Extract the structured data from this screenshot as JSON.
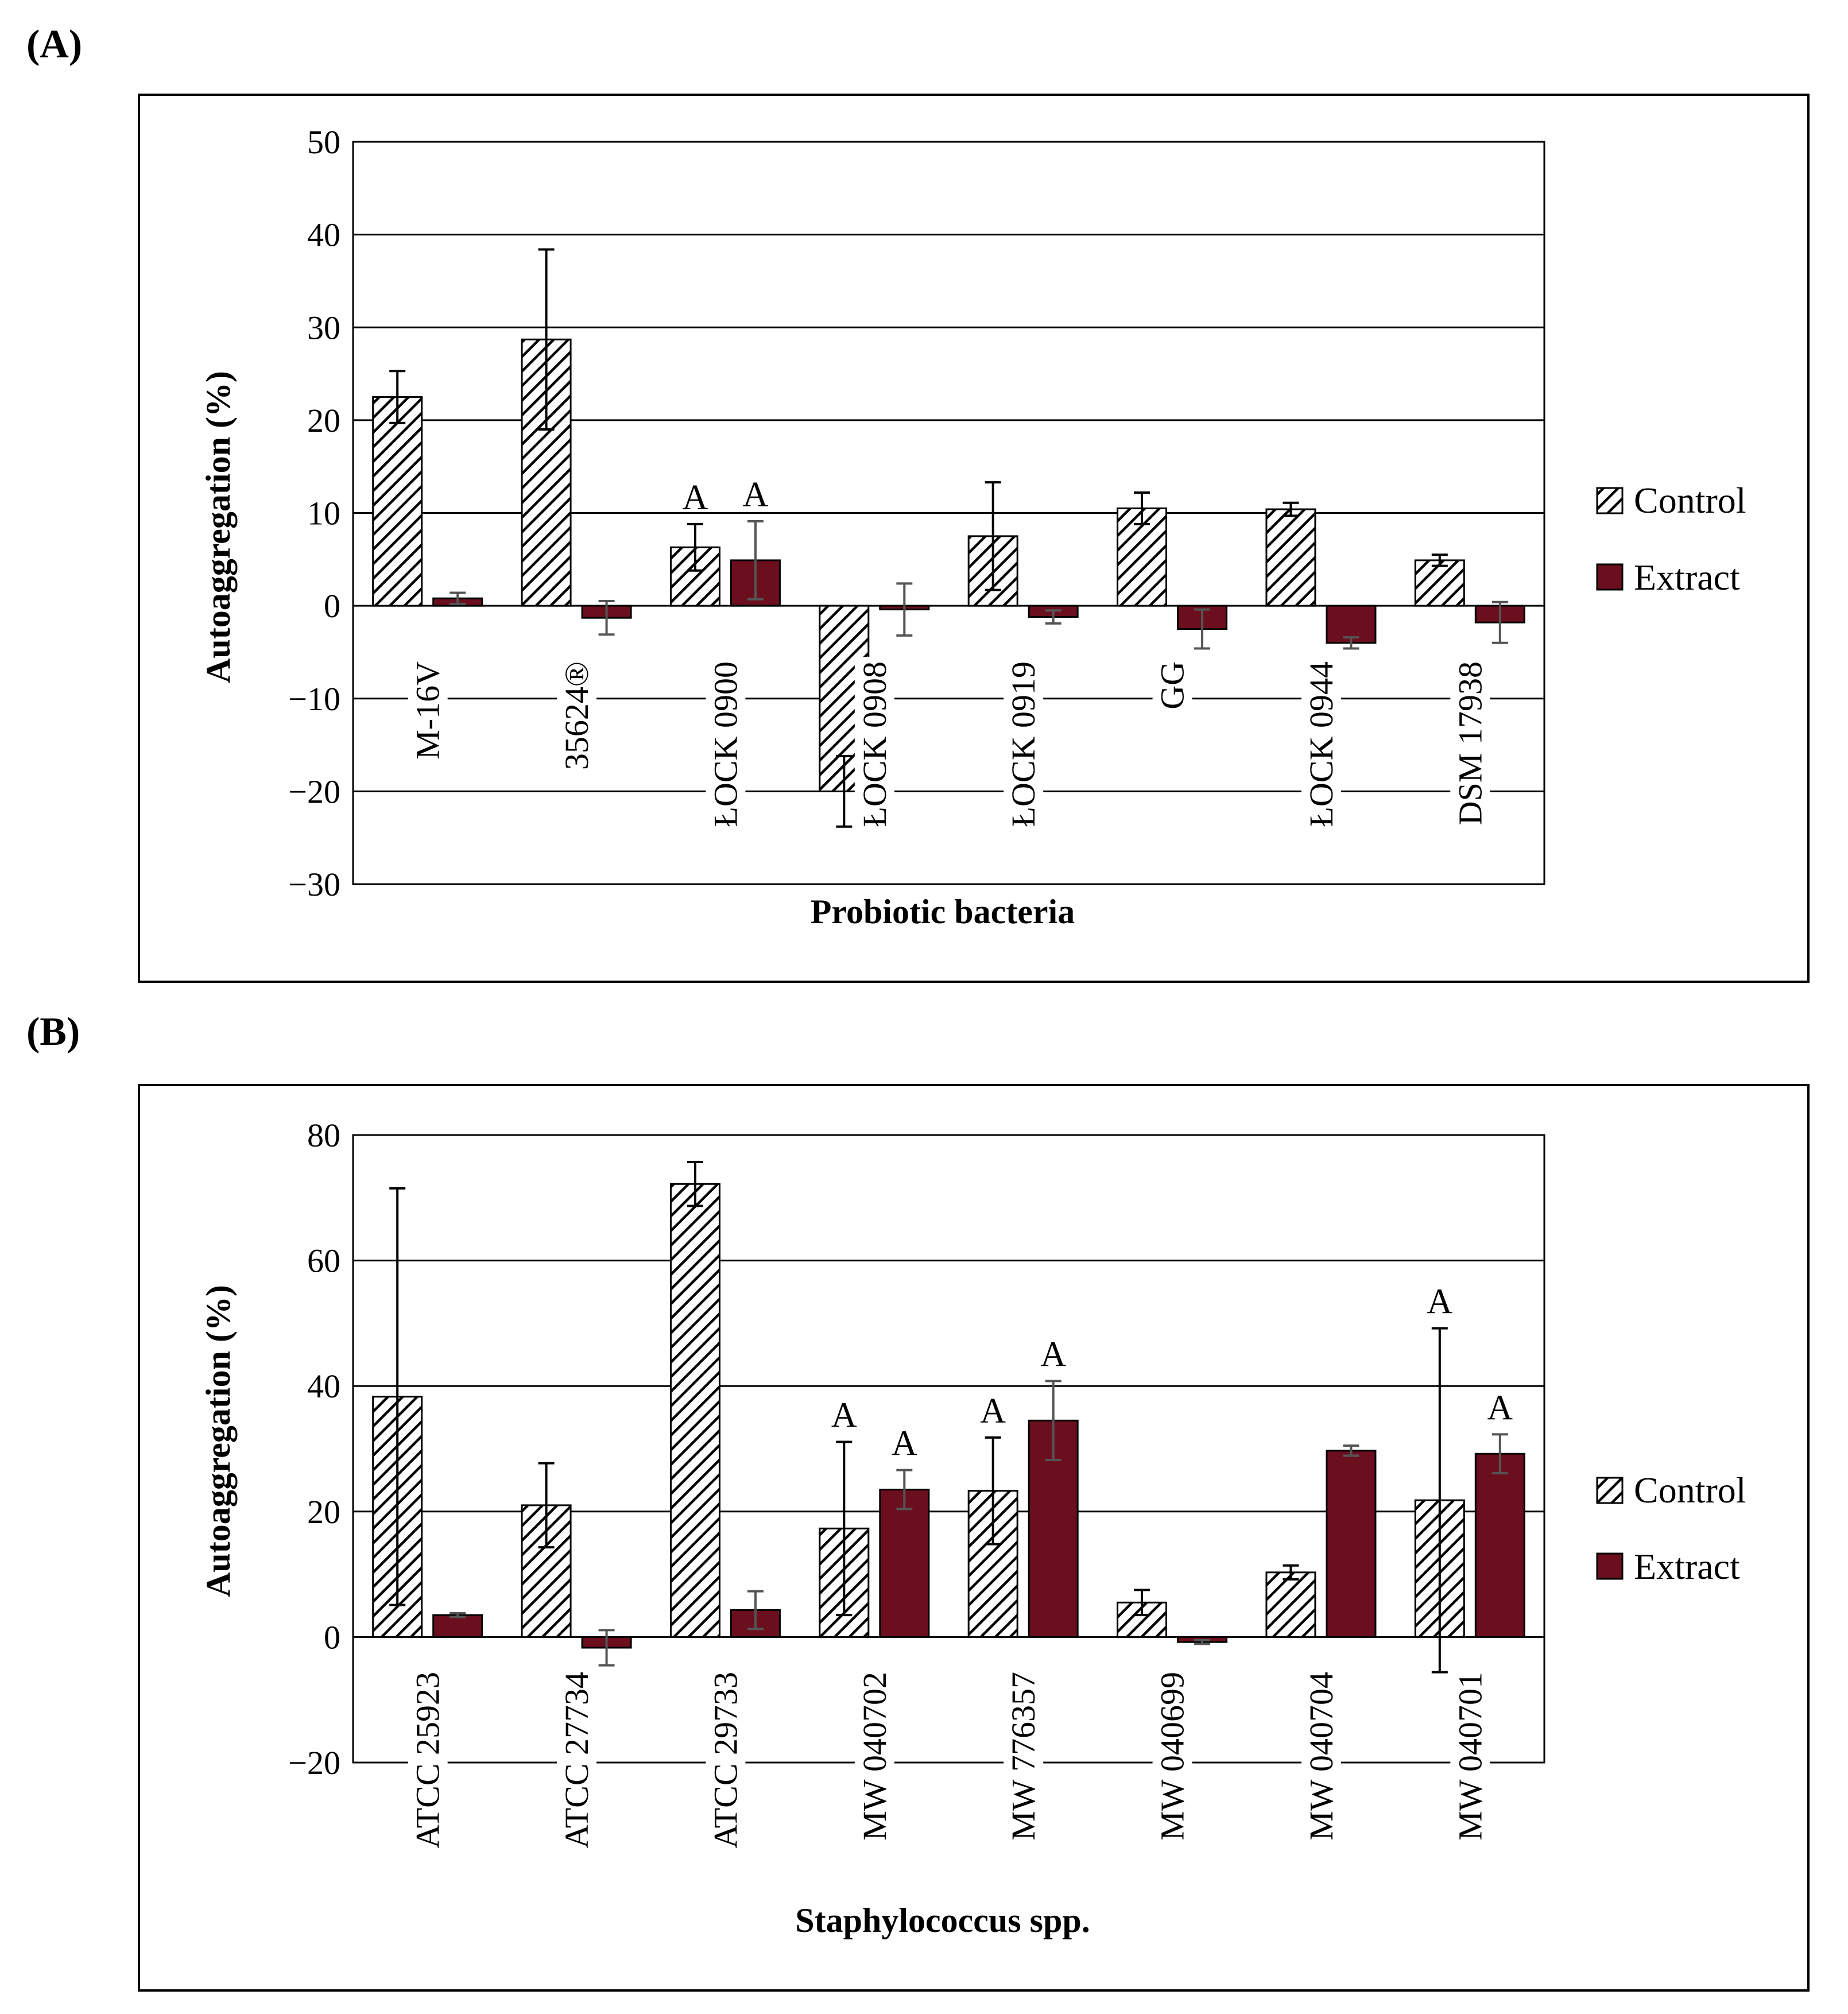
{
  "colors": {
    "extract": "#6b0f1e",
    "grid": "#000000",
    "error_bar": "#000000",
    "extract_error_bar": "#555555"
  },
  "chart_data": [
    {
      "panel_label": "(A)",
      "type": "bar",
      "xlabel": "Probiotic bacteria",
      "ylabel": "Autoaggregation (%)",
      "ylim": [
        -30,
        50
      ],
      "yticks": [
        50,
        40,
        30,
        20,
        10,
        0,
        -10,
        -20,
        -30
      ],
      "ytick_labels": [
        "50",
        "40",
        "30",
        "20",
        "10",
        "0",
        "−10",
        "−20",
        "−30"
      ],
      "categories": [
        "M-16V",
        "35624®",
        "ŁOCK 0900",
        "ŁOCK 0908",
        "ŁOCK 0919",
        "GG",
        "ŁOCK 0944",
        "DSM 17938"
      ],
      "legend": [
        "Control",
        "Extract"
      ],
      "series": [
        {
          "name": "Control",
          "pattern": "hatch",
          "values": [
            22.5,
            28.7,
            6.3,
            -20.0,
            7.5,
            10.5,
            10.4,
            4.9
          ],
          "errors": [
            2.8,
            9.7,
            2.5,
            3.8,
            5.8,
            1.7,
            0.7,
            0.6
          ],
          "annotations": [
            "",
            "",
            "A",
            "",
            "",
            "",
            "",
            ""
          ]
        },
        {
          "name": "Extract",
          "pattern": "solid",
          "values": [
            0.8,
            -1.3,
            4.9,
            -0.4,
            -1.2,
            -2.5,
            -4.0,
            -1.8
          ],
          "errors": [
            0.6,
            1.8,
            4.2,
            2.8,
            0.7,
            2.1,
            0.6,
            2.2
          ],
          "annotations": [
            "",
            "",
            "A",
            "",
            "",
            "",
            "",
            ""
          ]
        }
      ]
    },
    {
      "panel_label": "(B)",
      "type": "bar",
      "xlabel": "Staphylococcus spp.",
      "ylabel": "Autoaggregation (%)",
      "ylim": [
        -20,
        80
      ],
      "yticks": [
        80,
        60,
        40,
        20,
        0,
        -20
      ],
      "ytick_labels": [
        "80",
        "60",
        "40",
        "20",
        "0",
        "−20"
      ],
      "categories": [
        "ATCC 25923",
        "ATCC 27734",
        "ATCC 29733",
        "MW 040702",
        "MW 776357",
        "MW 040699",
        "MW 040704",
        "MW 040701"
      ],
      "legend": [
        "Control",
        "Extract"
      ],
      "series": [
        {
          "name": "Control",
          "pattern": "hatch",
          "values": [
            38.3,
            21.0,
            72.2,
            17.3,
            23.3,
            5.5,
            10.3,
            21.8
          ],
          "errors": [
            33.2,
            6.7,
            3.5,
            13.8,
            8.5,
            2.0,
            1.1,
            27.4
          ],
          "annotations": [
            "",
            "",
            "",
            "A",
            "A",
            "",
            "",
            "A"
          ]
        },
        {
          "name": "Extract",
          "pattern": "solid",
          "values": [
            3.5,
            -1.7,
            4.3,
            23.5,
            34.5,
            -0.8,
            29.7,
            29.2
          ],
          "errors": [
            0.3,
            2.8,
            3.0,
            3.1,
            6.3,
            0.3,
            0.8,
            3.1
          ],
          "annotations": [
            "",
            "",
            "",
            "A",
            "A",
            "",
            "",
            "A"
          ]
        }
      ]
    }
  ]
}
